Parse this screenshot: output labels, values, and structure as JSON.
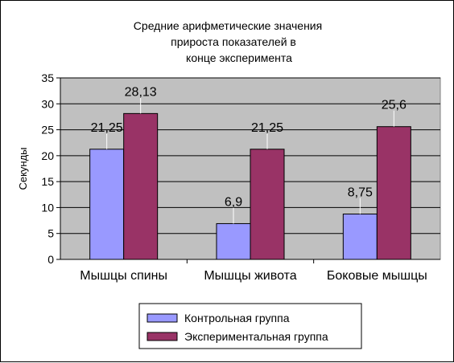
{
  "chart_data": {
    "type": "bar",
    "title_lines": [
      "Средние арифметические значения",
      "прироста показателей в",
      "конце эксперимента"
    ],
    "xlabel": "",
    "ylabel": "Секунды",
    "ylim": [
      0,
      35
    ],
    "yticks": [
      0,
      5,
      10,
      15,
      20,
      25,
      30,
      35
    ],
    "grid": true,
    "plot_background": "#C0C0C0",
    "legend_position": "bottom",
    "categories": [
      "Мышцы спины",
      "Мышцы живота",
      "Боковые мышцы"
    ],
    "series": [
      {
        "name": "Контрольная группа",
        "color": "#9999FF",
        "values": [
          21.25,
          6.9,
          8.75
        ],
        "labels": [
          "21,25",
          "6,9",
          "8,75"
        ]
      },
      {
        "name": "Экспериментальная группа",
        "color": "#993366",
        "values": [
          28.13,
          21.25,
          25.6
        ],
        "labels": [
          "28,13",
          "21,25",
          "25,6"
        ]
      }
    ]
  }
}
